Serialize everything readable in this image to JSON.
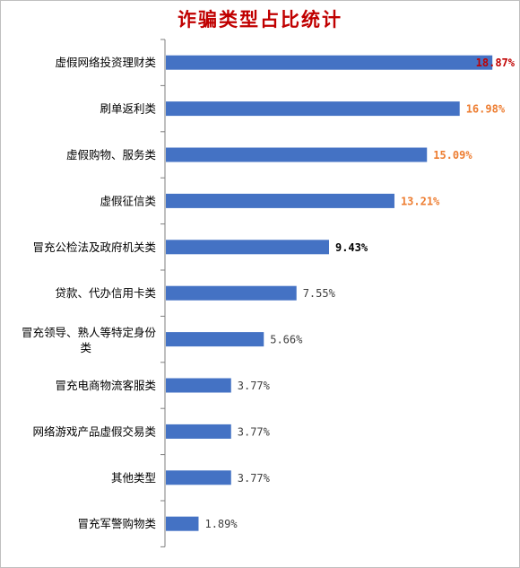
{
  "chart_data": {
    "type": "bar",
    "orientation": "horizontal",
    "title": "诈骗类型占比统计",
    "xlabel": "",
    "ylabel": "",
    "grid": false,
    "legend": "none",
    "xlim": [
      0,
      20
    ],
    "categories": [
      "虚假网络投资理财类",
      "刷单返利类",
      "虚假购物、服务类",
      "虚假征信类",
      "冒充公检法及政府机关类",
      "贷款、代办信用卡类",
      "冒充领导、熟人等特定身份类",
      "冒充电商物流客服类",
      "网络游戏产品虚假交易类",
      "其他类型",
      "冒充军警购物类"
    ],
    "values": [
      18.87,
      16.98,
      15.09,
      13.21,
      9.43,
      7.55,
      5.66,
      3.77,
      3.77,
      3.77,
      1.89
    ],
    "data_labels": [
      "18.87%",
      "16.98%",
      "15.09%",
      "13.21%",
      "9.43%",
      "7.55%",
      "5.66%",
      "3.77%",
      "3.77%",
      "3.77%",
      "1.89%"
    ],
    "colors": {
      "bar": "#4472c4",
      "title": "#c00000",
      "axis": "#7f7f7f",
      "label_red": "#c00000",
      "label_orange": "#ed7d31",
      "label_dark": "#000000",
      "label_gray": "#404040"
    },
    "label_colors": [
      "#c00000",
      "#ed7d31",
      "#ed7d31",
      "#ed7d31",
      "#000000",
      "#404040",
      "#404040",
      "#404040",
      "#404040",
      "#404040",
      "#404040"
    ],
    "label_bold": [
      true,
      true,
      true,
      true,
      true,
      false,
      false,
      false,
      false,
      false,
      false
    ]
  }
}
